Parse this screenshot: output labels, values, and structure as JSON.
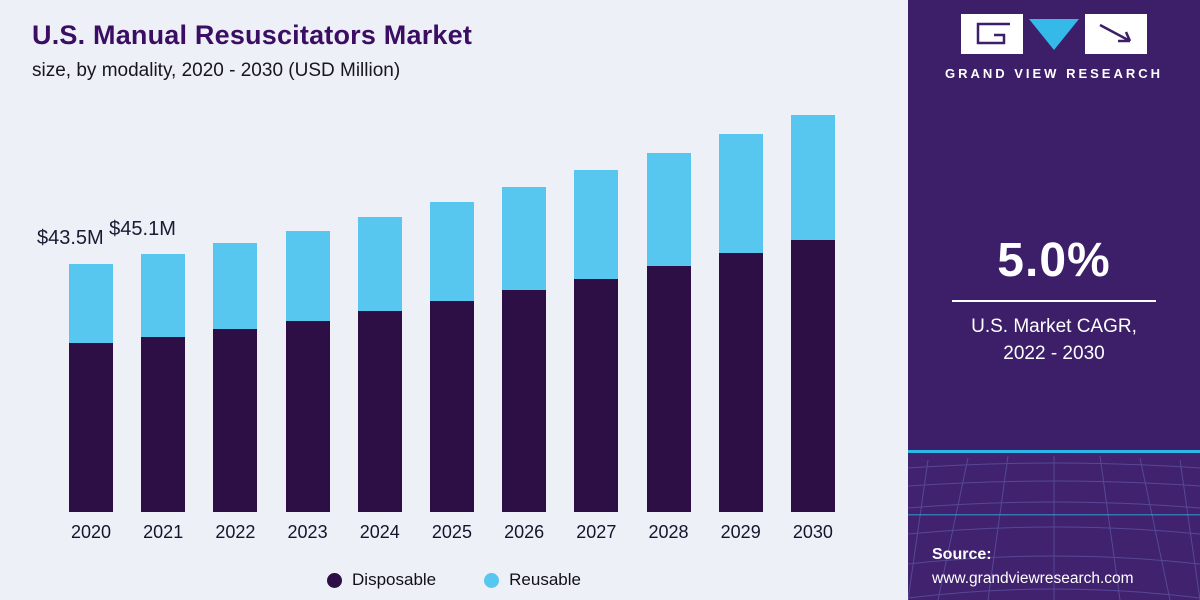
{
  "title": "U.S. Manual Resuscitators Market",
  "subtitle": "size, by modality, 2020 - 2030 (USD Million)",
  "colors": {
    "panel_background": "#edf1f7",
    "sidebar_background": "#3d1f69",
    "disposable": "#2d0f45",
    "reusable": "#57c7ef",
    "accent_cyan": "#2bb7e8",
    "title_text": "#3b0e63"
  },
  "chart_data": {
    "type": "bar",
    "stacked": true,
    "title": "U.S. Manual Resuscitators Market size, by modality, 2020 - 2030 (USD Million)",
    "xlabel": "",
    "ylabel": "USD Million",
    "ylim": [
      0,
      70
    ],
    "grid": false,
    "legend_position": "bottom",
    "categories": [
      "2020",
      "2021",
      "2022",
      "2023",
      "2024",
      "2025",
      "2026",
      "2027",
      "2028",
      "2029",
      "2030"
    ],
    "series": [
      {
        "name": "Disposable",
        "color": "#2d0f45",
        "values": [
          29.6,
          30.7,
          32.0,
          33.5,
          35.2,
          37.0,
          38.8,
          40.8,
          43.0,
          45.3,
          47.6
        ]
      },
      {
        "name": "Reusable",
        "color": "#57c7ef",
        "values": [
          13.9,
          14.4,
          15.0,
          15.7,
          16.4,
          17.2,
          18.1,
          19.0,
          19.9,
          20.8,
          21.9
        ]
      }
    ],
    "totals": [
      43.5,
      45.1,
      47.0,
      49.2,
      51.6,
      54.2,
      56.9,
      59.8,
      62.9,
      66.1,
      69.5
    ],
    "annotations": [
      {
        "category": "2020",
        "text": "$43.5M"
      },
      {
        "category": "2021",
        "text": "$45.1M"
      }
    ]
  },
  "sidebar": {
    "brand": "GRAND VIEW RESEARCH",
    "cagr_value": "5.0%",
    "cagr_label_line1": "U.S. Market CAGR,",
    "cagr_label_line2": "2022 - 2030",
    "source_label": "Source:",
    "source_url": "www.grandviewresearch.com"
  }
}
